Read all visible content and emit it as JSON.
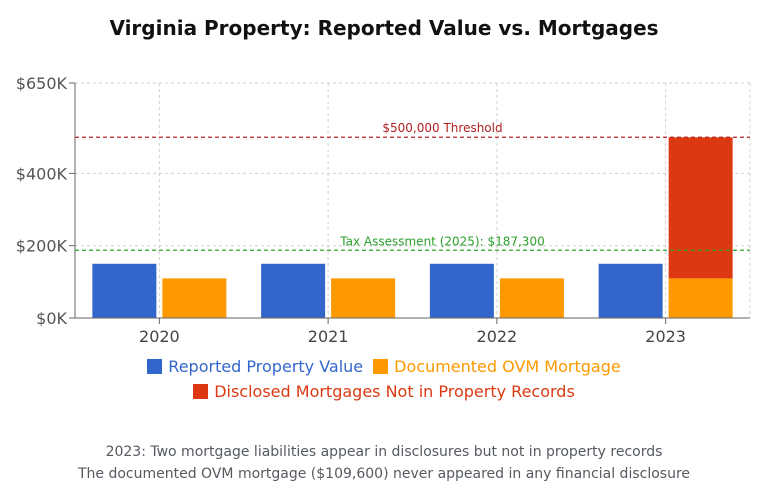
{
  "chart_data": {
    "type": "bar",
    "title": "Virginia Property: Reported Value vs. Mortgages",
    "categories": [
      "2020",
      "2021",
      "2022",
      "2023"
    ],
    "series": [
      {
        "name": "Reported Property Value",
        "color": "#3366cc",
        "values": [
          150000,
          150000,
          150000,
          150000
        ]
      },
      {
        "name": "Documented OVM Mortgage",
        "color": "#ff9900",
        "values": [
          109600,
          109600,
          109600,
          109600
        ]
      },
      {
        "name": "Disclosed Mortgages Not in Property Records",
        "color": "#dc3912",
        "values": [
          0,
          0,
          0,
          390000
        ],
        "stacked_on": "Documented OVM Mortgage"
      }
    ],
    "ylim": [
      0,
      650000
    ],
    "yticks": [
      0,
      200000,
      400000,
      650000
    ],
    "ytick_labels": [
      "$0K",
      "$200K",
      "$400K",
      "$650K"
    ],
    "reference_lines": [
      {
        "label": "$500,000 Threshold",
        "value": 500000,
        "color": "#b22222"
      },
      {
        "label": "Tax Assessment (2025): $187,300",
        "value": 187300,
        "color": "#2ca02c"
      }
    ],
    "grid": true,
    "legend_position": "bottom"
  },
  "notes": [
    "2023: Two mortgage liabilities appear in disclosures but not in property records",
    "The documented OVM mortgage ($109,600) never appeared in any financial disclosure"
  ]
}
